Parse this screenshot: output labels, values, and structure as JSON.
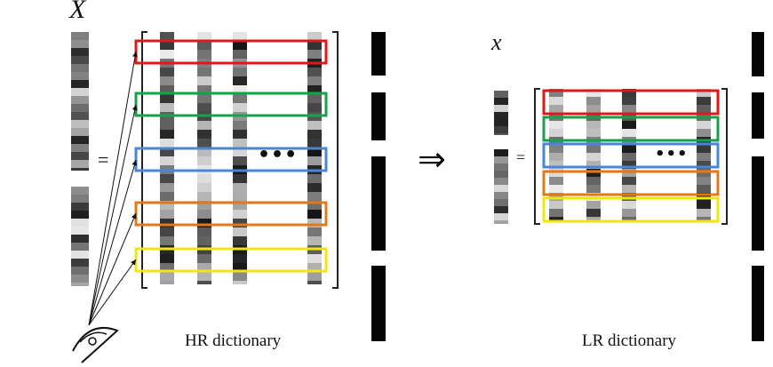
{
  "labels": {
    "hr_vector": "X",
    "lr_vector": "x",
    "equals": "=",
    "implies": "⇒",
    "ellipsis": "•••",
    "hr_caption": "HR dictionary",
    "lr_caption": "LR dictionary"
  },
  "colors": {
    "band_1": "#e01818",
    "band_2": "#1aa04a",
    "band_3": "#4a86d8",
    "band_4": "#e07a18",
    "band_5": "#f0e610",
    "bracket": "#222222"
  },
  "icons": [
    "eye-icon",
    "sight-line-arrows"
  ]
}
